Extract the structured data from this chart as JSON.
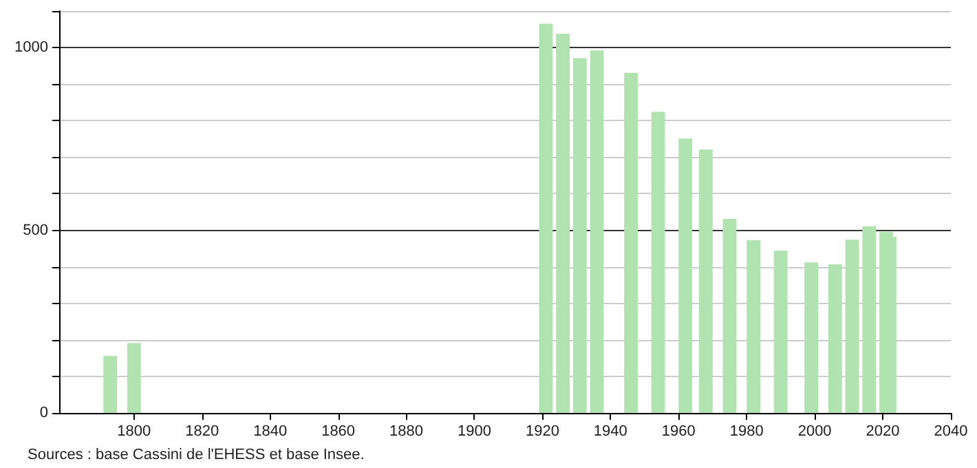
{
  "chart_data": {
    "type": "bar",
    "x": [
      1793,
      1800,
      1921,
      1926,
      1931,
      1936,
      1946,
      1954,
      1962,
      1968,
      1975,
      1982,
      1990,
      1999,
      2006,
      2011,
      2016,
      2021,
      2022
    ],
    "values": [
      156,
      191,
      1065,
      1038,
      971,
      992,
      931,
      824,
      751,
      721,
      531,
      473,
      444,
      412,
      407,
      474,
      511,
      496,
      482
    ],
    "color": "#b0e3b0",
    "xlim": [
      1778,
      2040
    ],
    "xticks": [
      1800,
      1820,
      1840,
      1860,
      1880,
      1900,
      1920,
      1940,
      1960,
      1980,
      2000,
      2020,
      2040
    ],
    "ylim": [
      0,
      1100
    ],
    "yticks": [
      0,
      {
        "value": 100,
        "label": null
      },
      {
        "value": 200,
        "label": null
      },
      {
        "value": 300,
        "label": null
      },
      {
        "value": 400,
        "label": null
      },
      500,
      {
        "value": 600,
        "label": null
      },
      {
        "value": 700,
        "label": null
      },
      {
        "value": 800,
        "label": null
      },
      {
        "value": 900,
        "label": null
      },
      1000,
      {
        "value": 1100,
        "label": null
      }
    ],
    "grid": "y",
    "annotations": [
      "Sources : base Cassini de l'EHESS et base Insee."
    ]
  }
}
